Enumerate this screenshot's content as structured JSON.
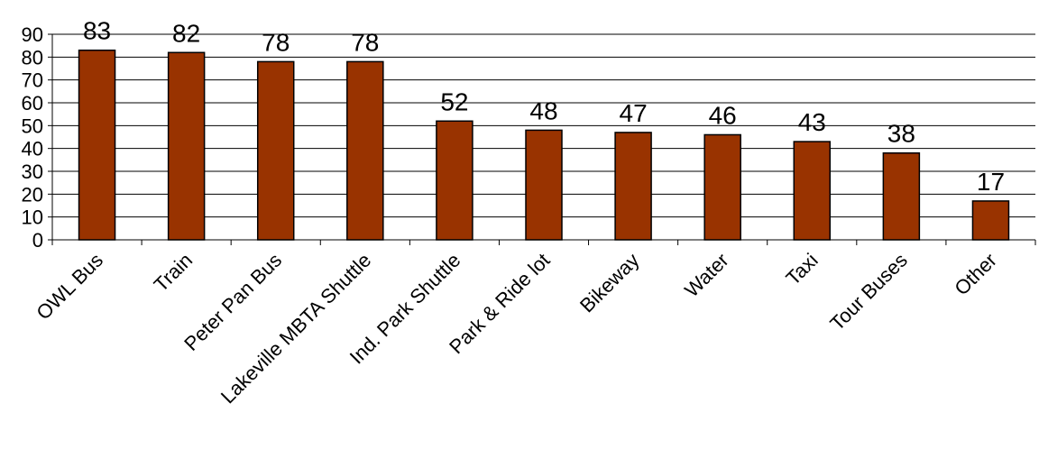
{
  "chart_data": {
    "type": "bar",
    "categories": [
      "OWL Bus",
      "Train",
      "Peter Pan Bus",
      "Lakeville MBTA Shuttle",
      "Ind. Park Shuttle",
      "Park & Ride lot",
      "Bikeway",
      "Water",
      "Taxi",
      "Tour Buses",
      "Other"
    ],
    "values": [
      83,
      82,
      78,
      78,
      52,
      48,
      47,
      46,
      43,
      38,
      17
    ],
    "data_labels": [
      "83",
      "82",
      "78",
      "78",
      "52",
      "48",
      "47",
      "46",
      "43",
      "38",
      "17"
    ],
    "title": "",
    "xlabel": "",
    "ylabel": "",
    "ylim": [
      0,
      90
    ],
    "yticks": [
      "0",
      "10",
      "20",
      "30",
      "40",
      "50",
      "60",
      "70",
      "80",
      "90"
    ],
    "grid": true,
    "legend": "none",
    "colors": {
      "bar": "#993300",
      "bar_edge": "#000000",
      "grid": "#000000"
    }
  }
}
